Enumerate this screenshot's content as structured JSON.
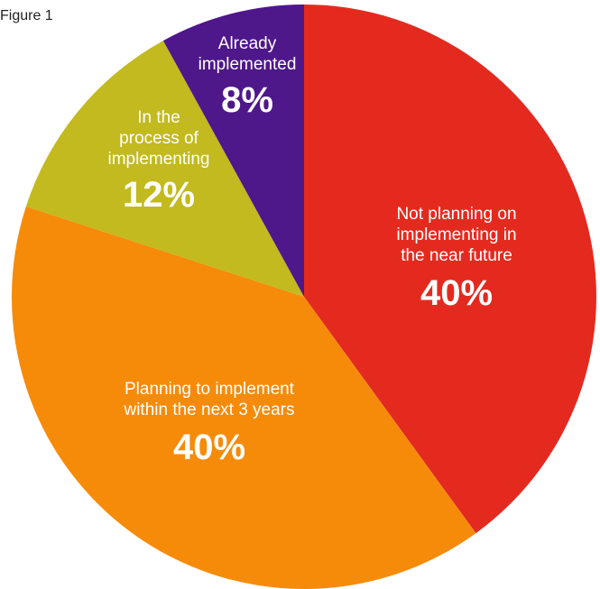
{
  "figure_label": "Figure 1",
  "chart_data": {
    "type": "pie",
    "title": "",
    "start": "12 o'clock",
    "direction": "clockwise",
    "slices": [
      {
        "lines": [
          "Not planning on",
          "implementing in",
          "the near future"
        ],
        "value": 40,
        "value_label": "40%",
        "color": "#e42a1f"
      },
      {
        "lines": [
          "Planning to implement",
          "within the next 3 years"
        ],
        "value": 40,
        "value_label": "40%",
        "color": "#f68b0a"
      },
      {
        "lines": [
          "In the",
          "process of",
          "implementing"
        ],
        "value": 12,
        "value_label": "12%",
        "color": "#c2ba1e"
      },
      {
        "lines": [
          "Already",
          "implemented"
        ],
        "value": 8,
        "value_label": "8%",
        "color": "#4e178a"
      }
    ]
  }
}
